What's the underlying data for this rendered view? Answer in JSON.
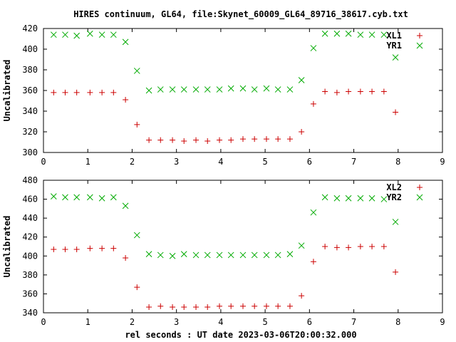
{
  "title": "HIRES continuum, GL64, file:Skynet_60009_GL64_89716_38617.cyb.txt",
  "xlabel": "rel seconds : UT date 2023-03-06T20:00:32.000",
  "colors": {
    "series_a": "#cc0000",
    "series_b": "#00aa00",
    "axis": "#000000"
  },
  "chart_data": [
    {
      "type": "scatter",
      "ylabel": "Uncalibrated",
      "xlim": [
        0,
        9
      ],
      "ylim": [
        300,
        420
      ],
      "xticks": [
        "0",
        "1",
        "2",
        "3",
        "4",
        "5",
        "6",
        "7",
        "8",
        "9"
      ],
      "yticks": [
        "300",
        "320",
        "340",
        "360",
        "380",
        "400",
        "420"
      ],
      "grid": false,
      "legend_position": "top-right",
      "x": [
        0.23,
        0.49,
        0.75,
        1.05,
        1.32,
        1.58,
        1.85,
        2.11,
        2.38,
        2.64,
        2.91,
        3.17,
        3.44,
        3.7,
        3.97,
        4.23,
        4.5,
        4.76,
        5.03,
        5.29,
        5.56,
        5.82,
        6.09,
        6.35,
        6.62,
        6.88,
        7.15,
        7.41,
        7.68,
        7.94
      ],
      "series": [
        {
          "name": "XL1",
          "marker": "plus",
          "values": [
            358,
            358,
            358,
            358,
            358,
            358,
            351,
            327,
            312,
            312,
            312,
            311,
            312,
            311,
            312,
            312,
            313,
            313,
            313,
            313,
            313,
            320,
            347,
            359,
            358,
            359,
            359,
            359,
            359,
            339
          ]
        },
        {
          "name": "YR1",
          "marker": "cross",
          "values": [
            414,
            414,
            413,
            415,
            414,
            414,
            407,
            379,
            360,
            361,
            361,
            361,
            361,
            361,
            361,
            362,
            362,
            361,
            362,
            361,
            361,
            370,
            401,
            415,
            415,
            415,
            414,
            414,
            414,
            392
          ]
        }
      ]
    },
    {
      "type": "scatter",
      "ylabel": "Uncalibrated",
      "xlim": [
        0,
        9
      ],
      "ylim": [
        340,
        480
      ],
      "xticks": [
        "0",
        "1",
        "2",
        "3",
        "4",
        "5",
        "6",
        "7",
        "8",
        "9"
      ],
      "yticks": [
        "340",
        "360",
        "380",
        "400",
        "420",
        "440",
        "460",
        "480"
      ],
      "grid": false,
      "legend_position": "top-right",
      "x": [
        0.23,
        0.49,
        0.75,
        1.05,
        1.32,
        1.58,
        1.85,
        2.11,
        2.38,
        2.64,
        2.91,
        3.17,
        3.44,
        3.7,
        3.97,
        4.23,
        4.5,
        4.76,
        5.03,
        5.29,
        5.56,
        5.82,
        6.09,
        6.35,
        6.62,
        6.88,
        7.15,
        7.41,
        7.68,
        7.94
      ],
      "series": [
        {
          "name": "XL2",
          "marker": "plus",
          "values": [
            407,
            407,
            407,
            408,
            408,
            408,
            398,
            367,
            346,
            347,
            346,
            346,
            346,
            346,
            347,
            347,
            347,
            347,
            347,
            347,
            347,
            358,
            394,
            410,
            409,
            409,
            410,
            410,
            410,
            383
          ]
        },
        {
          "name": "YR2",
          "marker": "cross",
          "values": [
            463,
            462,
            462,
            462,
            461,
            462,
            453,
            422,
            402,
            401,
            400,
            402,
            401,
            401,
            401,
            401,
            401,
            401,
            401,
            401,
            402,
            411,
            446,
            462,
            461,
            461,
            461,
            461,
            460,
            436
          ]
        }
      ]
    }
  ]
}
